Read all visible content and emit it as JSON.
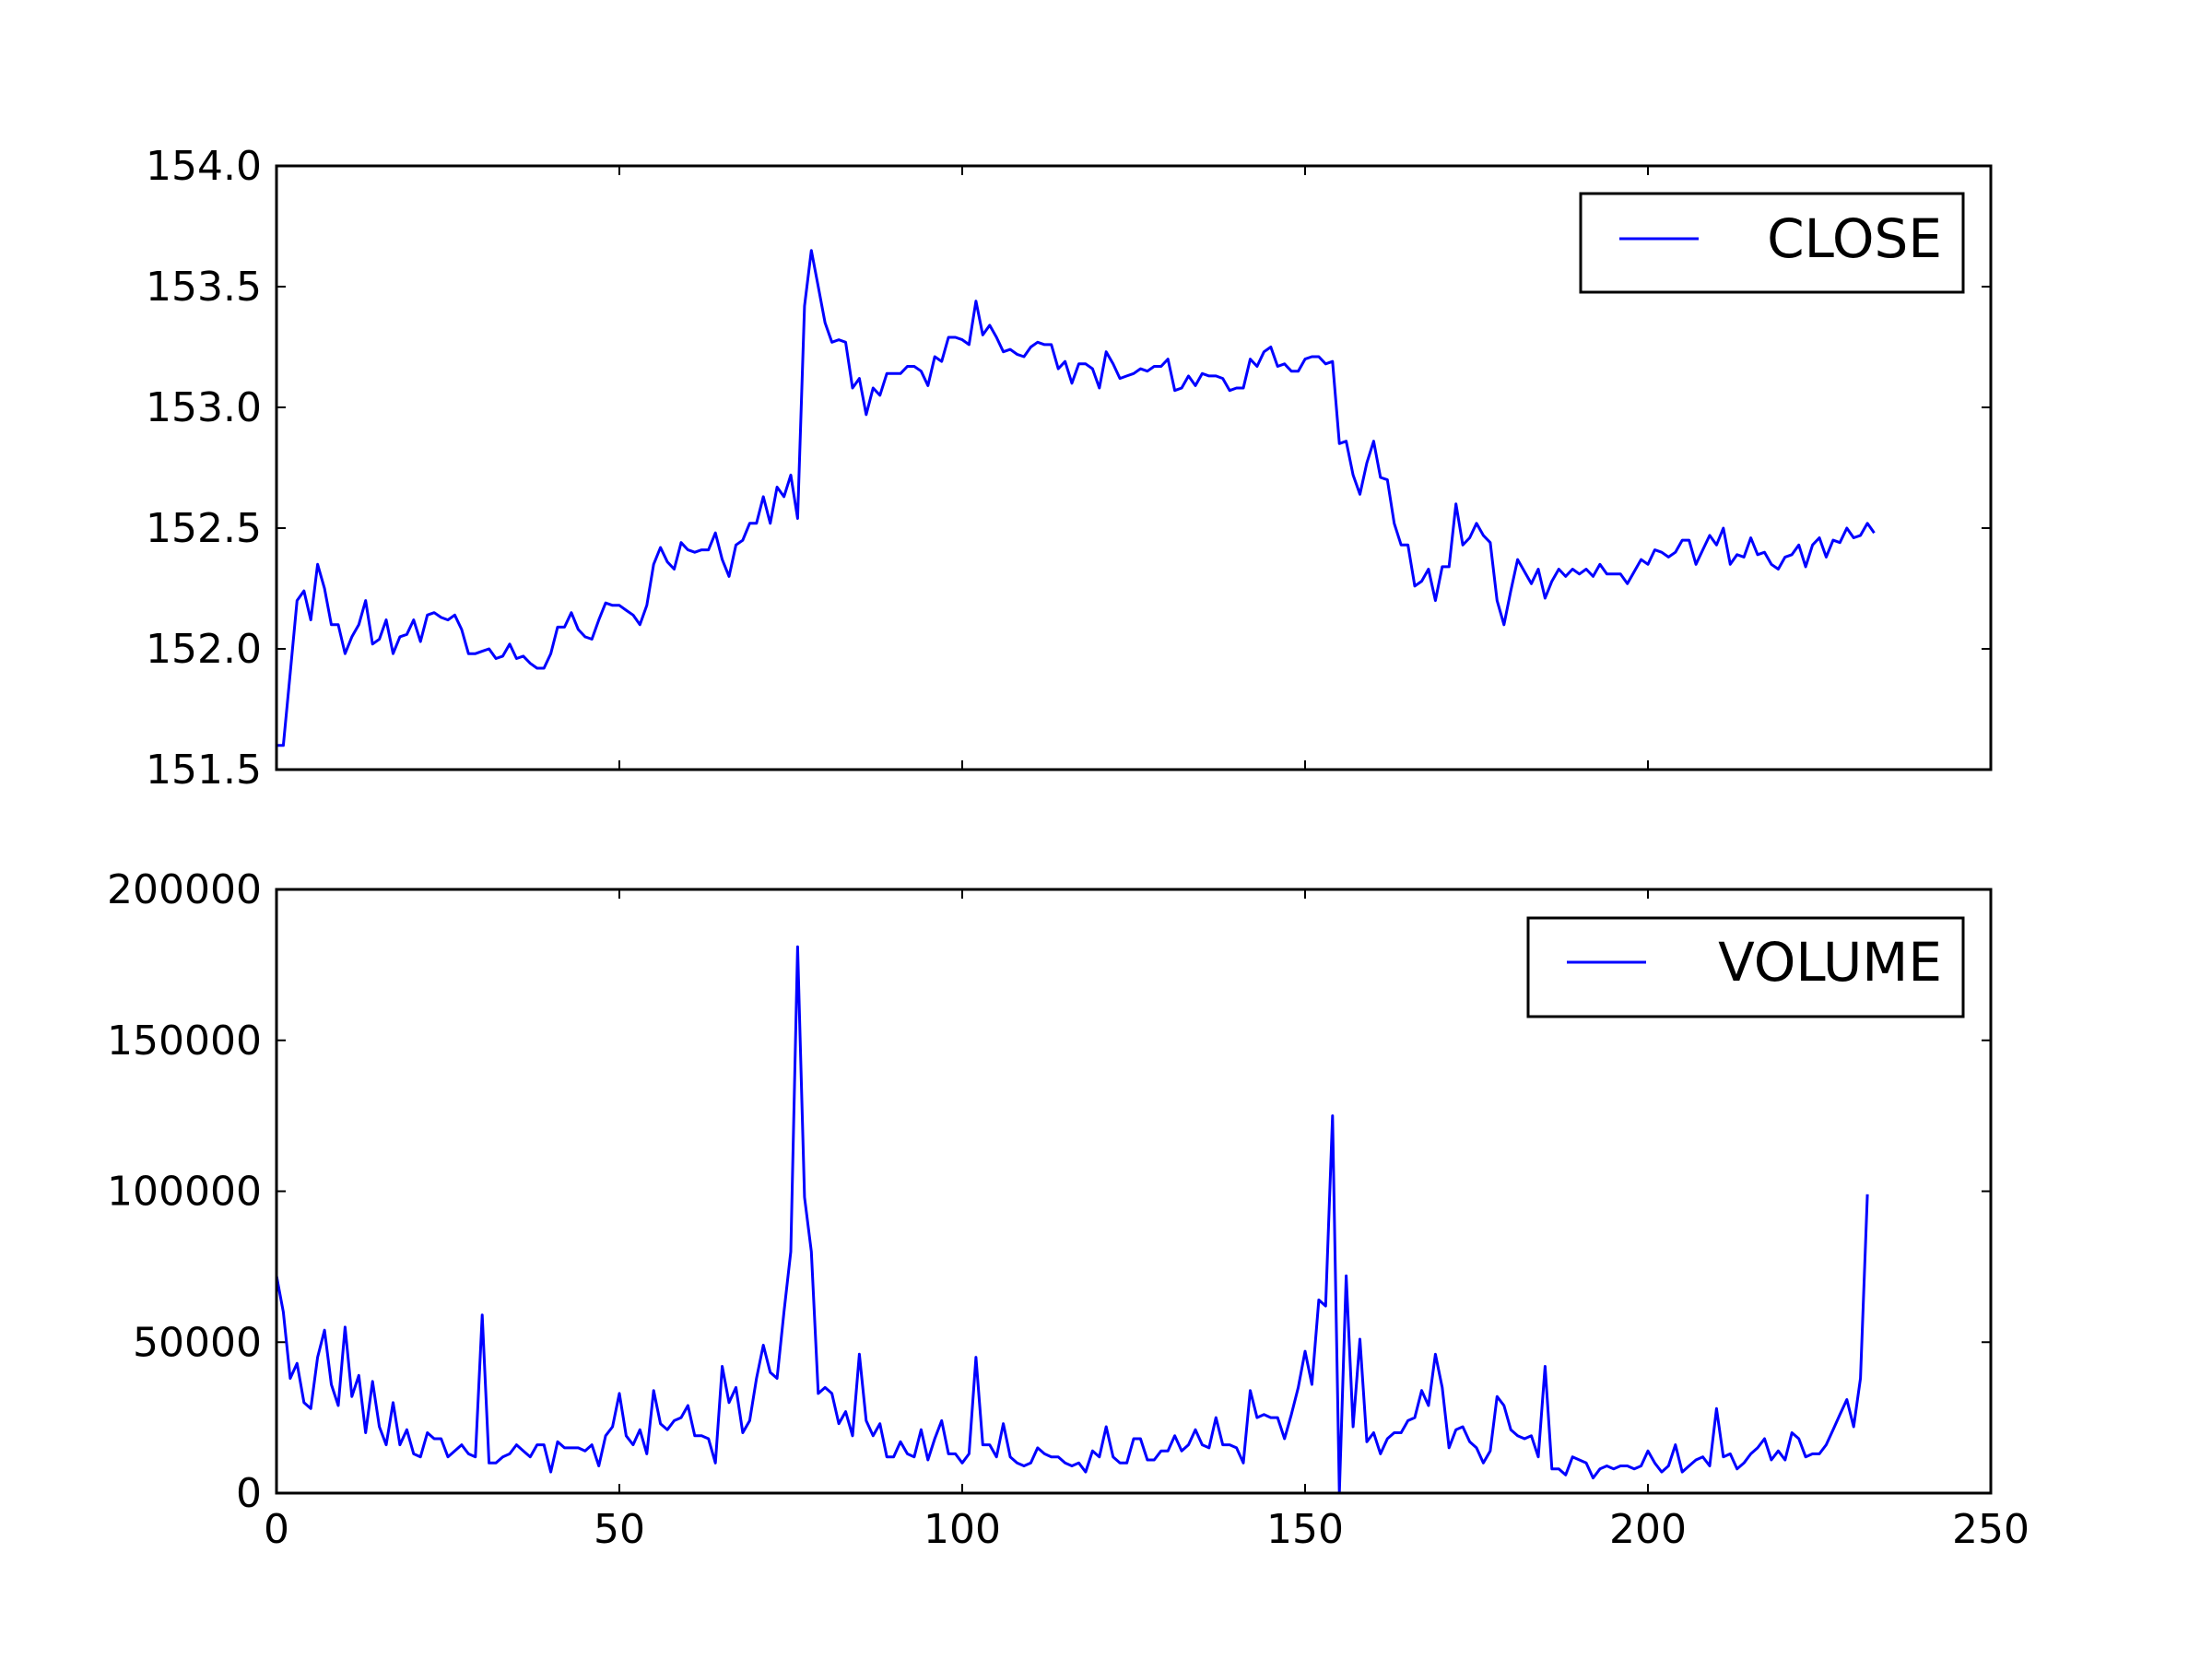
{
  "chart_data": [
    {
      "type": "line",
      "title": "",
      "xlabel": "",
      "ylabel": "",
      "xlim": [
        0,
        250
      ],
      "ylim": [
        151.5,
        154.0
      ],
      "xticks": [
        0,
        50,
        100,
        150,
        200,
        250
      ],
      "xtick_labels_visible": false,
      "yticks": [
        151.5,
        152.0,
        152.5,
        153.0,
        153.5,
        154.0
      ],
      "ytick_labels": [
        "151.5",
        "152.0",
        "152.5",
        "153.0",
        "153.5",
        "154.0"
      ],
      "grid": false,
      "legend_position": "top-right",
      "series": [
        {
          "name": "CLOSE",
          "color": "#0000ff",
          "x_start": 0,
          "x_step": 1,
          "values": [
            151.6,
            151.6,
            151.9,
            152.2,
            152.24,
            152.12,
            152.35,
            152.25,
            152.1,
            152.1,
            151.98,
            152.05,
            152.1,
            152.2,
            152.02,
            152.04,
            152.12,
            151.98,
            152.05,
            152.06,
            152.12,
            152.03,
            152.14,
            152.15,
            152.13,
            152.12,
            152.14,
            152.08,
            151.98,
            151.98,
            151.99,
            152.0,
            151.96,
            151.97,
            152.02,
            151.96,
            151.97,
            151.94,
            151.92,
            151.92,
            151.98,
            152.09,
            152.09,
            152.15,
            152.08,
            152.05,
            152.04,
            152.12,
            152.19,
            152.18,
            152.18,
            152.16,
            152.14,
            152.1,
            152.18,
            152.35,
            152.42,
            152.36,
            152.33,
            152.44,
            152.41,
            152.4,
            152.41,
            152.41,
            152.48,
            152.37,
            152.3,
            152.43,
            152.45,
            152.52,
            152.52,
            152.63,
            152.52,
            152.67,
            152.63,
            152.72,
            152.54,
            153.42,
            153.65,
            153.5,
            153.35,
            153.27,
            153.28,
            153.27,
            153.08,
            153.12,
            152.97,
            153.08,
            153.05,
            153.14,
            153.14,
            153.14,
            153.17,
            153.17,
            153.15,
            153.09,
            153.21,
            153.19,
            153.29,
            153.29,
            153.28,
            153.26,
            153.44,
            153.3,
            153.34,
            153.29,
            153.23,
            153.24,
            153.22,
            153.21,
            153.25,
            153.27,
            153.26,
            153.26,
            153.16,
            153.19,
            153.1,
            153.18,
            153.18,
            153.16,
            153.08,
            153.23,
            153.18,
            153.12,
            153.13,
            153.14,
            153.16,
            153.15,
            153.17,
            153.17,
            153.2,
            153.07,
            153.08,
            153.13,
            153.09,
            153.14,
            153.13,
            153.13,
            153.12,
            153.07,
            153.08,
            153.08,
            153.2,
            153.17,
            153.23,
            153.25,
            153.17,
            153.18,
            153.15,
            153.15,
            153.2,
            153.21,
            153.21,
            153.18,
            153.19,
            152.85,
            152.86,
            152.72,
            152.64,
            152.77,
            152.86,
            152.71,
            152.7,
            152.52,
            152.43,
            152.43,
            152.26,
            152.28,
            152.33,
            152.2,
            152.34,
            152.34,
            152.6,
            152.43,
            152.46,
            152.52,
            152.47,
            152.44,
            152.2,
            152.1,
            152.24,
            152.37,
            152.32,
            152.27,
            152.33,
            152.21,
            152.28,
            152.33,
            152.3,
            152.33,
            152.31,
            152.33,
            152.3,
            152.35,
            152.31,
            152.31,
            152.31,
            152.27,
            152.32,
            152.37,
            152.35,
            152.41,
            152.4,
            152.38,
            152.4,
            152.45,
            152.45,
            152.35,
            152.41,
            152.47,
            152.43,
            152.5,
            152.35,
            152.39,
            152.38,
            152.46,
            152.39,
            152.4,
            152.35,
            152.33,
            152.38,
            152.39,
            152.43,
            152.34,
            152.43,
            152.46,
            152.38,
            152.45,
            152.44,
            152.5,
            152.46,
            152.47,
            152.52,
            152.48
          ]
        }
      ]
    },
    {
      "type": "line",
      "title": "",
      "xlabel": "",
      "ylabel": "",
      "xlim": [
        0,
        250
      ],
      "ylim": [
        0,
        200000
      ],
      "xticks": [
        0,
        50,
        100,
        150,
        200,
        250
      ],
      "xtick_labels": [
        "0",
        "50",
        "100",
        "150",
        "200",
        "250"
      ],
      "yticks": [
        0,
        50000,
        100000,
        150000,
        200000
      ],
      "ytick_labels": [
        "0",
        "50000",
        "100000",
        "150000",
        "200000"
      ],
      "grid": false,
      "legend_position": "top-right",
      "series": [
        {
          "name": "VOLUME",
          "color": "#0000ff",
          "x_start": 0,
          "x_step": 1,
          "values": [
            72000,
            60000,
            38000,
            43000,
            30000,
            28000,
            45000,
            54000,
            36000,
            29000,
            55000,
            32000,
            39000,
            20000,
            37000,
            22000,
            16000,
            30000,
            16000,
            21000,
            13000,
            12000,
            20000,
            18000,
            18000,
            12000,
            14000,
            16000,
            13000,
            12000,
            59000,
            10000,
            10000,
            12000,
            13000,
            16000,
            14000,
            12000,
            16000,
            16000,
            7000,
            17000,
            15000,
            15000,
            15000,
            14000,
            16000,
            9000,
            19000,
            22000,
            33000,
            19000,
            16000,
            21000,
            13000,
            34000,
            23000,
            21000,
            24000,
            25000,
            29000,
            19000,
            19000,
            18000,
            10000,
            42000,
            30000,
            35000,
            20000,
            24000,
            38000,
            49000,
            40000,
            38000,
            60000,
            80000,
            181000,
            98000,
            80000,
            33000,
            35000,
            33000,
            23000,
            27000,
            19000,
            46000,
            24000,
            19000,
            23000,
            12000,
            12000,
            17000,
            13000,
            12000,
            21000,
            11000,
            18000,
            24000,
            13000,
            13000,
            10000,
            13000,
            45000,
            16000,
            16000,
            12000,
            23000,
            12000,
            10000,
            9000,
            10000,
            15000,
            13000,
            12000,
            12000,
            10000,
            9000,
            10000,
            7000,
            14000,
            12000,
            22000,
            12000,
            10000,
            10000,
            18000,
            18000,
            11000,
            11000,
            14000,
            14000,
            19000,
            14000,
            16000,
            21000,
            16000,
            15000,
            25000,
            16000,
            16000,
            15000,
            10000,
            34000,
            25000,
            26000,
            25000,
            25000,
            18000,
            26000,
            35000,
            47000,
            36000,
            64000,
            62000,
            125000,
            0,
            72000,
            22000,
            51000,
            17000,
            20000,
            13000,
            18000,
            20000,
            20000,
            24000,
            25000,
            34000,
            29000,
            46000,
            35000,
            15000,
            21000,
            22000,
            17000,
            15000,
            10000,
            14000,
            32000,
            29000,
            21000,
            19000,
            18000,
            19000,
            12000,
            42000,
            8000,
            8000,
            6000,
            12000,
            11000,
            10000,
            5000,
            8000,
            9000,
            8000,
            9000,
            9000,
            8000,
            9000,
            14000,
            10000,
            7000,
            9000,
            16000,
            7000,
            9000,
            11000,
            12000,
            9000,
            28000,
            12000,
            13000,
            8000,
            10000,
            13000,
            15000,
            18000,
            11000,
            14000,
            11000,
            20000,
            18000,
            12000,
            13000,
            13000,
            16000,
            21000,
            26000,
            31000,
            22000,
            38000,
            99000
          ]
        }
      ]
    }
  ]
}
